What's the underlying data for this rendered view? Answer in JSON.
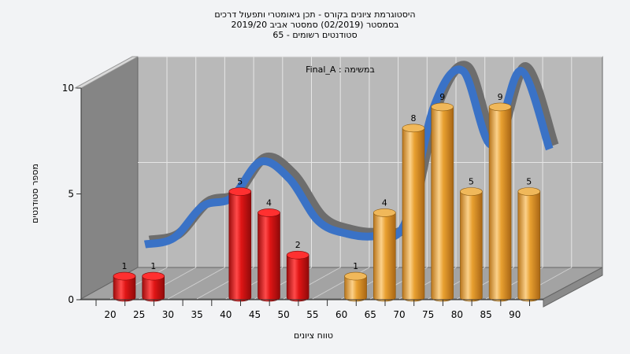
{
  "chart_data": {
    "type": "bar",
    "title_lines": [
      "היסטוגרמת ציונים בקורס - תכן גיאומטרי ותפעול דרכים",
      "בסמסטר  (02/2019)  סמסטר אביב 2019/20",
      "סטודנטים רשומים - 65"
    ],
    "annotation": "במשימה : Final_A",
    "xlabel": "טווח ציונים",
    "ylabel": "מספר סטודנטים",
    "ylim": [
      0,
      10
    ],
    "yticks": [
      0,
      5,
      10
    ],
    "categories": [
      "20",
      "25",
      "30",
      "35",
      "40",
      "45",
      "50",
      "55",
      "60",
      "65",
      "70",
      "75",
      "80",
      "85",
      "90"
    ],
    "values": [
      1,
      1,
      0,
      0,
      5,
      4,
      2,
      0,
      1,
      4,
      8,
      9,
      5,
      9,
      5
    ],
    "bar_colors": [
      "red",
      "red",
      "red",
      "red",
      "red",
      "red",
      "red",
      "red",
      "gold",
      "gold",
      "gold",
      "gold",
      "gold",
      "gold",
      "gold"
    ],
    "curve": [
      1.8,
      2.1,
      3.6,
      4.0,
      5.7,
      4.9,
      2.9,
      2.3,
      2.2,
      2.8,
      8.3,
      10.0,
      6.5,
      10.0,
      6.3
    ],
    "grid": true,
    "colors": {
      "red": "#e01515",
      "gold": "#e8a030",
      "curve_front": "#3a72c6",
      "curve_back": "#6d6d6d",
      "wall": "#b9b9b9",
      "side_wall": "#858585",
      "floor": "#a3a3a3"
    }
  }
}
